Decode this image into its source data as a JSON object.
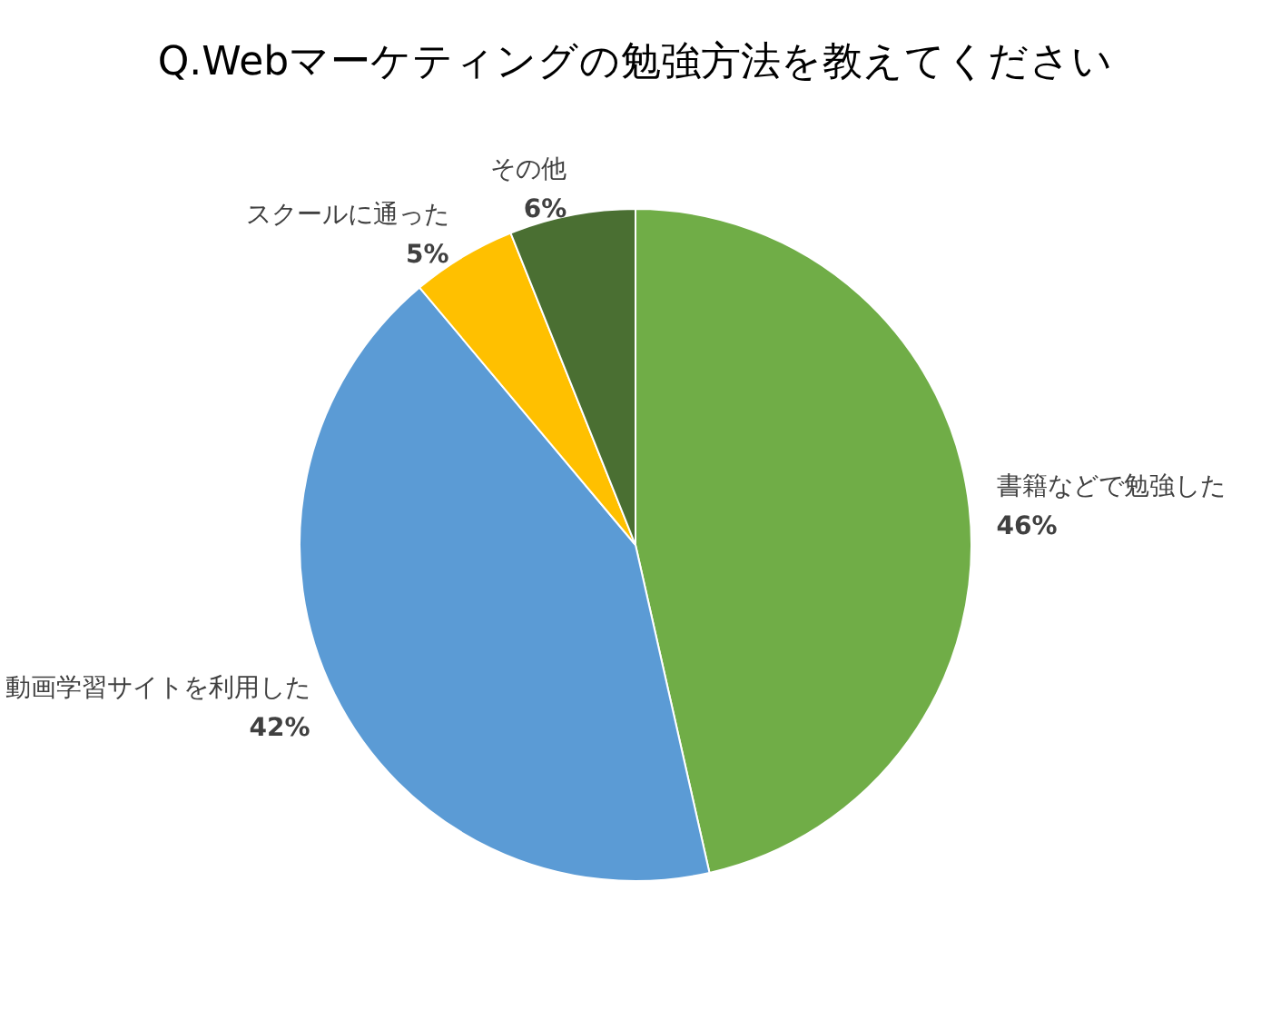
{
  "chart_data": {
    "type": "pie",
    "title": "Q.Webマーケティングの勉強方法を教えてください",
    "categories": [
      "書籍などで勉強した",
      "動画学習サイトを利用した",
      "スクールに通った",
      "その他"
    ],
    "values": [
      46,
      42,
      5,
      6
    ],
    "value_labels": [
      "46%",
      "42%",
      "5%",
      "6%"
    ],
    "colors": [
      "#70ad47",
      "#5b9bd5",
      "#ffc000",
      "#4a6f32"
    ]
  }
}
